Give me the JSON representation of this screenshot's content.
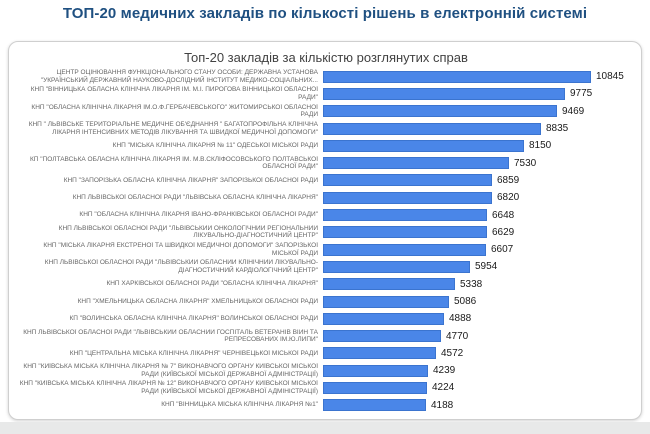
{
  "page": {
    "title": "ТОП-20 медичних закладів по кількості рішень в електронній системі"
  },
  "colors": {
    "title_color": "#1f5081",
    "bar_fill": "#4a86e8",
    "bar_border": "#3b74cf",
    "label_text": "#666666",
    "value_text": "#1a1a1a",
    "card_border": "#cfcfcf",
    "footer_strip": "#e8e9e9"
  },
  "chart_data": {
    "type": "bar",
    "orientation": "horizontal",
    "title": "Топ-20 закладів за кількістю розглянутих справ",
    "xlim": [
      0,
      11000
    ],
    "grid": false,
    "legend": false,
    "value_labels_shown": true,
    "categories": [
      "ЦЕНТР ОЦІНЮВАННЯ ФУНКЦІОНАЛЬНОГО СТАНУ ОСОБИ: ДЕРЖАВНА УСТАНОВА \"УКРАЇНСЬКИЙ ДЕРЖАВНИЙ НАУКОВО-ДОСЛІДНИЙ ІНСТИТУТ МЕДИКО-СОЦІАЛЬНИХ...",
      "КНП \"ВІННИЦЬКА ОБЛАСНА КЛІНІЧНА ЛІКАРНЯ ІМ. М.І. ПИРОГОВА ВІННИЦЬКОЇ ОБЛАСНОЇ РАДИ\"",
      "КНП \"ОБЛАСНА КЛІНІЧНА ЛІКАРНЯ ІМ.О.Ф.ГЕРБАЧЕВСЬКОГО\" ЖИТОМИРСЬКОЇ ОБЛАСНОЇ РАДИ",
      "КНП \" ЛЬВІВСЬКЕ ТЕРИТОРІАЛЬНЕ МЕДИЧНЕ ОБ'ЄДНАННЯ \" БАГАТОПРОФІЛЬНА КЛІНІЧНА ЛІКАРНЯ ІНТЕНСИВНИХ МЕТОДІВ ЛІКУВАННЯ ТА ШВИДКОЇ МЕДИЧНОЇ ДОПОМОГИ\"",
      "КНП \"МІСЬКА КЛІНІЧНА ЛІКАРНЯ № 11\" ОДЕСЬКОЇ МІСЬКОЇ РАДИ",
      "КП \"ПОЛТАВСЬКА ОБЛАСНА КЛІНІЧНА ЛІКАРНЯ ІМ. М.В.СКЛІФОСОВСЬКОГО ПОЛТАВСЬКОЇ ОБЛАСНОЇ РАДИ\"",
      "КНП \"ЗАПОРІЗЬКА ОБЛАСНА КЛІНІЧНА ЛІКАРНЯ\" ЗАПОРІЗЬКОЇ ОБЛАСНОЇ РАДИ",
      "КНП ЛЬВІВСЬКОЇ ОБЛАСНОЇ РАДИ \"ЛЬВІВСЬКА ОБЛАСНА КЛІНІЧНА ЛІКАРНЯ\"",
      "КНП \"ОБЛАСНА КЛІНІЧНА ЛІКАРНЯ ІВАНО-ФРАНКІВСЬКОЇ ОБЛАСНОЇ РАДИ\"",
      "КНП ЛЬВІВСЬКОЇ ОБЛАСНОЇ РАДИ \"ЛЬВІВСЬКИЙ ОНКОЛОГІЧНИЙ РЕГІОНАЛЬНИЙ ЛІКУВАЛЬНО-ДІАГНОСТИЧНИЙ ЦЕНТР\"",
      "КНП \"МІСЬКА ЛІКАРНЯ ЕКСТРЕНОЇ ТА ШВИДКОЇ МЕДИЧНОЇ ДОПОМОГИ\" ЗАПОРІЗЬКОЇ МІСЬКОЇ РАДИ",
      "КНП ЛЬВІВСЬКОЇ ОБЛАСНОЇ РАДИ \"ЛЬВІВСЬКИЙ ОБЛАСНИЙ  КЛІНІЧНИЙ ЛІКУВАЛЬНО-ДІАГНОСТИЧНИЙ КАРДІОЛОГІЧНИЙ ЦЕНТР\"",
      "КНП ХАРКІВСЬКОЇ ОБЛАСНОЇ РАДИ \"ОБЛАСНА КЛІНІЧНА ЛІКАРНЯ\"",
      "КНП \"ХМЕЛЬНИЦЬКА ОБЛАСНА ЛІКАРНЯ\" ХМЕЛЬНИЦЬКОЇ ОБЛАСНОЇ РАДИ",
      "КП \"ВОЛИНСЬКА ОБЛАСНА КЛІНІЧНА ЛІКАРНЯ\" ВОЛИНСЬКОЇ ОБЛАСНОЇ РАДИ",
      "КНП ЛЬВІВСЬКОЇ ОБЛАСНОЇ РАДИ \"ЛЬВІВСЬКИЙ ОБЛАСНИЙ ГОСПІТАЛЬ ВЕТЕРАНІВ ВІЙН ТА РЕПРЕСОВАНИХ ІМ.Ю.ЛИПИ\"",
      "КНП \"ЦЕНТРАЛЬНА МІСЬКА КЛІНІЧНА ЛІКАРНЯ\" ЧЕРНІВЕЦЬКОЇ МІСЬКОЇ РАДИ",
      "КНП \"КИЇВСЬКА МІСЬКА КЛІНІЧНА ЛІКАРНЯ № 7\" ВИКОНАВЧОГО ОРГАНУ КИЇВСЬКОЇ МІСЬКОЇ РАДИ (КИЇВСЬКОЇ МІСЬКОЇ ДЕРЖАВНОЇ АДМІНІСТРАЦІЇ)",
      "КНП \"КИЇВСЬКА МІСЬКА КЛІНІЧНА ЛІКАРНЯ № 12\" ВИКОНАВЧОГО ОРГАНУ КИЇВСЬКОЇ МІСЬКОЇ РАДИ (КИЇВСЬКОЇ МІСЬКОЇ ДЕРЖАВНОЇ АДМІНІСТРАЦІЇ)",
      "КНП \"ВІННИЦЬКА МІСЬКА КЛІНІЧНА ЛІКАРНЯ №1\""
    ],
    "values": [
      10845,
      9775,
      9469,
      8835,
      8150,
      7530,
      6859,
      6820,
      6648,
      6629,
      6607,
      5954,
      5338,
      5086,
      4888,
      4770,
      4572,
      4239,
      4224,
      4188
    ]
  }
}
